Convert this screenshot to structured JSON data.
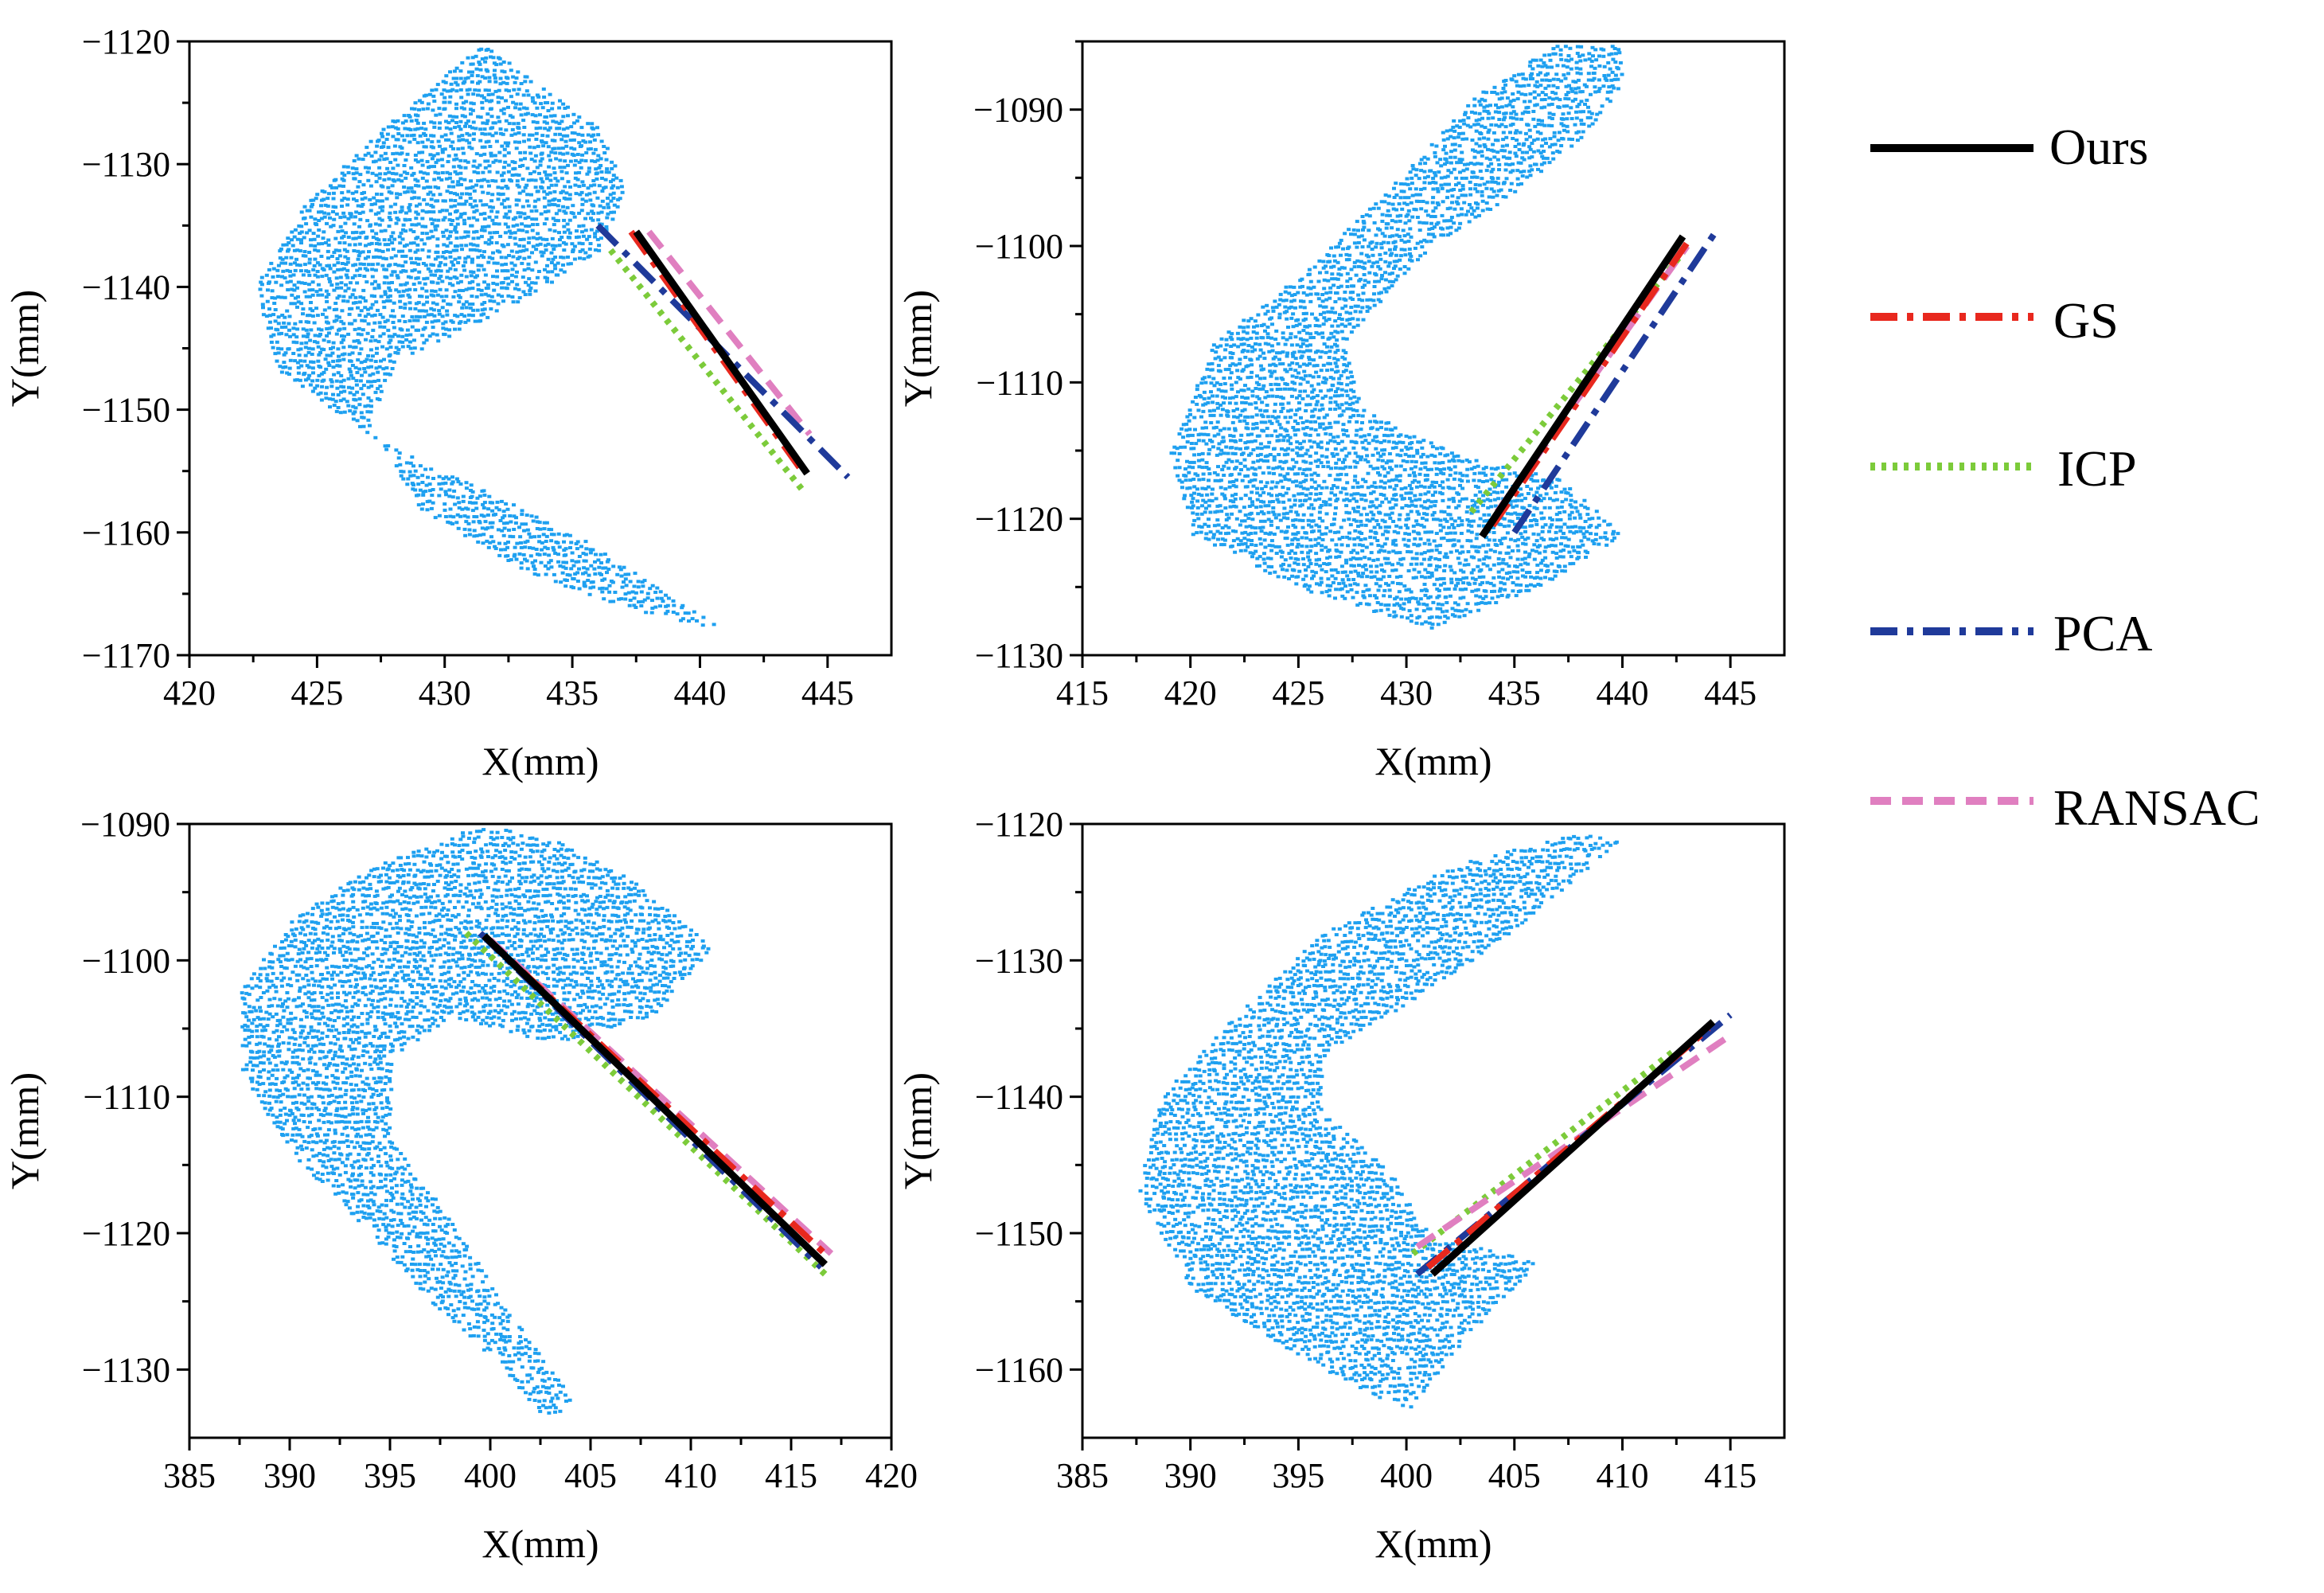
{
  "figure": {
    "background": "#ffffff"
  },
  "legend": {
    "entries": [
      {
        "name": "Ours",
        "color": "#000000",
        "dash": "solid"
      },
      {
        "name": "GS",
        "color": "#e8281e",
        "dash": "dashdot"
      },
      {
        "name": "ICP",
        "color": "#7ccb3a",
        "dash": "dot"
      },
      {
        "name": "PCA",
        "color": "#1f3a9a",
        "dash": "dashdot"
      },
      {
        "name": "RANSAC",
        "color": "#e07fc0",
        "dash": "dash"
      }
    ]
  },
  "chart_data": [
    {
      "type": "scatter",
      "title": "",
      "xlabel": "X(mm)",
      "ylabel": "Y(mm)",
      "xlim": [
        420,
        447.5
      ],
      "ylim": [
        -1170,
        -1120
      ],
      "xticks": [
        420,
        425,
        430,
        435,
        440,
        445
      ],
      "yticks": [
        -1170,
        -1160,
        -1150,
        -1140,
        -1130,
        -1120
      ],
      "xtick_labels": [
        "420",
        "425",
        "430",
        "435",
        "440",
        "445"
      ],
      "ytick_labels": [
        "−1170",
        "−1160",
        "−1150",
        "−1140",
        "−1130",
        "−1120"
      ],
      "point_color": "#1ea0f0",
      "points_shape": [
        [
          431.5,
          -1120
        ],
        [
          428,
          -1126
        ],
        [
          424.5,
          -1133
        ],
        [
          422.5,
          -1140
        ],
        [
          423.5,
          -1147
        ],
        [
          427,
          -1152
        ],
        [
          431,
          -1156
        ],
        [
          435,
          -1160
        ],
        [
          438,
          -1164
        ],
        [
          441,
          -1168
        ],
        [
          437,
          -1166
        ],
        [
          433,
          -1163
        ],
        [
          429,
          -1158
        ],
        [
          427,
          -1151
        ],
        [
          428,
          -1146
        ],
        [
          433,
          -1141
        ],
        [
          436,
          -1137
        ],
        [
          437,
          -1132
        ],
        [
          436,
          -1127
        ],
        [
          434,
          -1124
        ]
      ],
      "series": [
        {
          "name": "Ours",
          "x": [
            437.5,
            444.2
          ],
          "y": [
            -1135.5,
            -1155.2
          ]
        },
        {
          "name": "GS",
          "x": [
            437.3,
            444.0
          ],
          "y": [
            -1135.5,
            -1155.0
          ]
        },
        {
          "name": "ICP",
          "x": [
            436.5,
            444.0
          ],
          "y": [
            -1137.0,
            -1156.5
          ]
        },
        {
          "name": "PCA",
          "x": [
            436.0,
            445.8
          ],
          "y": [
            -1135.0,
            -1155.5
          ]
        },
        {
          "name": "RANSAC",
          "x": [
            438.0,
            444.3
          ],
          "y": [
            -1135.5,
            -1152.0
          ]
        }
      ]
    },
    {
      "type": "scatter",
      "title": "",
      "xlabel": "X(mm)",
      "ylabel": "Y(mm)",
      "xlim": [
        415,
        447.5
      ],
      "ylim": [
        -1130,
        -1085
      ],
      "xticks": [
        415,
        420,
        425,
        430,
        435,
        440,
        445
      ],
      "yticks": [
        -1130,
        -1120,
        -1110,
        -1100,
        -1090
      ],
      "xtick_labels": [
        "415",
        "420",
        "425",
        "430",
        "435",
        "440",
        "445"
      ],
      "ytick_labels": [
        "−1130",
        "−1120",
        "−1110",
        "−1100",
        "−1090"
      ],
      "point_color": "#1ea0f0",
      "points_shape": [
        [
          437,
          -1085
        ],
        [
          433,
          -1089
        ],
        [
          429,
          -1096
        ],
        [
          425,
          -1102
        ],
        [
          421,
          -1107
        ],
        [
          419,
          -1115
        ],
        [
          420,
          -1121
        ],
        [
          425,
          -1125
        ],
        [
          431,
          -1128
        ],
        [
          436,
          -1125
        ],
        [
          440,
          -1121
        ],
        [
          437,
          -1117
        ],
        [
          432,
          -1115
        ],
        [
          428,
          -1112
        ],
        [
          427,
          -1107
        ],
        [
          431,
          -1100
        ],
        [
          435,
          -1096
        ],
        [
          438,
          -1092
        ],
        [
          440,
          -1088
        ],
        [
          440,
          -1085
        ]
      ],
      "series": [
        {
          "name": "Ours",
          "x": [
            433.5,
            442.8
          ],
          "y": [
            -1121.3,
            -1099.3
          ]
        },
        {
          "name": "GS",
          "x": [
            434.0,
            443.2
          ],
          "y": [
            -1120.5,
            -1099.3
          ]
        },
        {
          "name": "ICP",
          "x": [
            433.0,
            442.8
          ],
          "y": [
            -1119.5,
            -1100.5
          ]
        },
        {
          "name": "PCA",
          "x": [
            435.0,
            444.3
          ],
          "y": [
            -1121.0,
            -1099.0
          ]
        },
        {
          "name": "RANSAC",
          "x": [
            434.2,
            443.0
          ],
          "y": [
            -1119.5,
            -1100.0
          ]
        }
      ]
    },
    {
      "type": "scatter",
      "title": "",
      "xlabel": "X(mm)",
      "ylabel": "Y(mm)",
      "xlim": [
        385,
        420
      ],
      "ylim": [
        -1135,
        -1090
      ],
      "xticks": [
        385,
        390,
        395,
        400,
        405,
        410,
        415,
        420
      ],
      "yticks": [
        -1130,
        -1120,
        -1110,
        -1100,
        -1090
      ],
      "xtick_labels": [
        "385",
        "390",
        "395",
        "400",
        "405",
        "410",
        "415",
        "420"
      ],
      "ytick_labels": [
        "−1130",
        "−1120",
        "−1110",
        "−1100",
        "−1090"
      ],
      "point_color": "#1ea0f0",
      "points_shape": [
        [
          399.5,
          -1090
        ],
        [
          394,
          -1093
        ],
        [
          390,
          -1097
        ],
        [
          387.5,
          -1102
        ],
        [
          387.5,
          -1108
        ],
        [
          390,
          -1114
        ],
        [
          394,
          -1120
        ],
        [
          397,
          -1125
        ],
        [
          400,
          -1129
        ],
        [
          403,
          -1134
        ],
        [
          404,
          -1132
        ],
        [
          401,
          -1126
        ],
        [
          398,
          -1119
        ],
        [
          395,
          -1113
        ],
        [
          395,
          -1107
        ],
        [
          398,
          -1104
        ],
        [
          403,
          -1106
        ],
        [
          408,
          -1104
        ],
        [
          411,
          -1099
        ],
        [
          407,
          -1094
        ],
        [
          403,
          -1091
        ]
      ],
      "series": [
        {
          "name": "Ours",
          "x": [
            399.7,
            416.7
          ],
          "y": [
            -1098.2,
            -1122.3
          ]
        },
        {
          "name": "GS",
          "x": [
            399.7,
            416.9
          ],
          "y": [
            -1098.2,
            -1121.8
          ]
        },
        {
          "name": "ICP",
          "x": [
            398.8,
            416.9
          ],
          "y": [
            -1098.0,
            -1123.3
          ]
        },
        {
          "name": "PCA",
          "x": [
            399.5,
            416.5
          ],
          "y": [
            -1098.0,
            -1122.5
          ]
        },
        {
          "name": "RANSAC",
          "x": [
            400.0,
            417.0
          ],
          "y": [
            -1098.5,
            -1121.5
          ]
        }
      ]
    },
    {
      "type": "scatter",
      "title": "",
      "xlabel": "X(mm)",
      "ylabel": "Y(mm)",
      "xlim": [
        385,
        417.5
      ],
      "ylim": [
        -1165,
        -1120
      ],
      "xticks": [
        385,
        390,
        395,
        400,
        405,
        410,
        415
      ],
      "yticks": [
        -1160,
        -1150,
        -1140,
        -1130,
        -1120
      ],
      "xtick_labels": [
        "385",
        "390",
        "395",
        "400",
        "405",
        "410",
        "415"
      ],
      "ytick_labels": [
        "−1160",
        "−1150",
        "−1140",
        "−1130",
        "−1120"
      ],
      "point_color": "#1ea0f0",
      "points_shape": [
        [
          408,
          -1120.5
        ],
        [
          402,
          -1123
        ],
        [
          396,
          -1128
        ],
        [
          392,
          -1134
        ],
        [
          388.5,
          -1140
        ],
        [
          387.5,
          -1147
        ],
        [
          390,
          -1154
        ],
        [
          395,
          -1159
        ],
        [
          400,
          -1163
        ],
        [
          403,
          -1157
        ],
        [
          406,
          -1152
        ],
        [
          401,
          -1150
        ],
        [
          399,
          -1145
        ],
        [
          396,
          -1141
        ],
        [
          396,
          -1137
        ],
        [
          399,
          -1134
        ],
        [
          403,
          -1130
        ],
        [
          407,
          -1125
        ],
        [
          410,
          -1121
        ]
      ],
      "series": [
        {
          "name": "Ours",
          "x": [
            401.2,
            414.2
          ],
          "y": [
            -1153.0,
            -1134.5
          ]
        },
        {
          "name": "GS",
          "x": [
            401.0,
            414.0
          ],
          "y": [
            -1152.5,
            -1135.0
          ]
        },
        {
          "name": "ICP",
          "x": [
            400.3,
            412.5
          ],
          "y": [
            -1151.5,
            -1136.5
          ]
        },
        {
          "name": "PCA",
          "x": [
            400.5,
            415.0
          ],
          "y": [
            -1153.0,
            -1134.0
          ]
        },
        {
          "name": "RANSAC",
          "x": [
            400.5,
            415.0
          ],
          "y": [
            -1151.0,
            -1135.5
          ]
        }
      ]
    }
  ]
}
